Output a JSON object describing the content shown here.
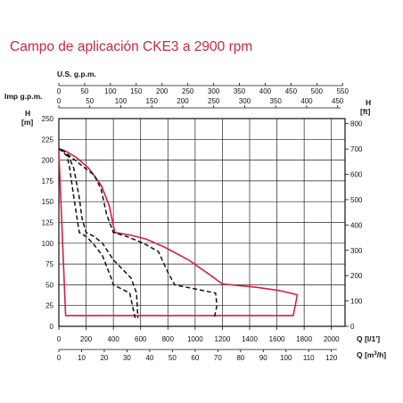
{
  "title": "Campo de aplicación CKE3 a 2900 rpm",
  "chart_data": {
    "type": "line",
    "title": "Campo de aplicación CKE3 a 2900 rpm",
    "grid": true,
    "axes": {
      "left": {
        "label_line1": "H",
        "label_line2": "[m]",
        "ylim": [
          0,
          250
        ],
        "ticks": [
          0,
          25,
          50,
          75,
          100,
          125,
          150,
          175,
          200,
          225,
          250
        ]
      },
      "right": {
        "label_line1": "H",
        "label_line2": "[ft]",
        "ylim": [
          0,
          820
        ],
        "ticks": [
          0,
          100,
          200,
          300,
          400,
          500,
          600,
          700,
          800
        ]
      },
      "bottom_lmin": {
        "label": "Q [l/1']",
        "xlim": [
          0,
          2100
        ],
        "ticks": [
          0,
          200,
          400,
          600,
          800,
          1000,
          1200,
          1400,
          1600,
          1800,
          2000
        ]
      },
      "bottom_m3h": {
        "label_prefix": "Q [m",
        "label_sup": "3",
        "label_suffix": "/h]",
        "ticks": [
          0,
          10,
          20,
          30,
          40,
          50,
          60,
          70,
          80,
          90,
          100,
          110,
          120
        ]
      },
      "top_usgpm": {
        "label": "U.S. g.p.m.",
        "ticks": [
          0,
          50,
          100,
          150,
          200,
          250,
          300,
          350,
          400,
          450,
          500,
          550
        ]
      },
      "top_impgpm": {
        "label": "Imp g.p.m.",
        "ticks": [
          0,
          50,
          100,
          150,
          200,
          250,
          300,
          350,
          400,
          450
        ]
      }
    },
    "series": [
      {
        "style": "solid",
        "color": "#d4213d",
        "points": [
          [
            0,
            214
          ],
          [
            60,
            210
          ],
          [
            130,
            203
          ],
          [
            220,
            190
          ],
          [
            310,
            170
          ],
          [
            370,
            145
          ],
          [
            410,
            113
          ],
          [
            520,
            110
          ],
          [
            640,
            105
          ],
          [
            780,
            95
          ],
          [
            950,
            80
          ],
          [
            1100,
            63
          ],
          [
            1200,
            51
          ],
          [
            1450,
            47
          ],
          [
            1620,
            43
          ],
          [
            1750,
            38
          ],
          [
            1720,
            13
          ],
          [
            1220,
            13
          ],
          [
            400,
            13
          ],
          [
            50,
            13
          ],
          [
            0,
            210
          ]
        ]
      },
      {
        "style": "dashed",
        "color": "#111111",
        "points": [
          [
            20,
            213
          ],
          [
            70,
            205
          ],
          [
            110,
            190
          ],
          [
            150,
            155
          ],
          [
            170,
            130
          ],
          [
            200,
            113
          ],
          [
            260,
            108
          ],
          [
            320,
            100
          ],
          [
            400,
            80
          ],
          [
            530,
            58
          ],
          [
            570,
            40
          ],
          [
            580,
            10
          ]
        ]
      },
      {
        "style": "dashed",
        "color": "#111111",
        "points": [
          [
            20,
            213
          ],
          [
            80,
            205
          ],
          [
            180,
            192
          ],
          [
            260,
            182
          ],
          [
            310,
            165
          ],
          [
            350,
            135
          ],
          [
            400,
            113
          ],
          [
            500,
            108
          ],
          [
            620,
            100
          ],
          [
            730,
            90
          ],
          [
            800,
            65
          ],
          [
            850,
            50
          ],
          [
            1000,
            45
          ],
          [
            1150,
            40
          ],
          [
            1160,
            25
          ],
          [
            1140,
            10
          ]
        ]
      },
      {
        "style": "dashed",
        "color": "#111111",
        "points": [
          [
            0,
            214
          ],
          [
            60,
            205
          ],
          [
            80,
            190
          ],
          [
            110,
            155
          ],
          [
            150,
            113
          ],
          [
            200,
            108
          ],
          [
            250,
            100
          ],
          [
            320,
            85
          ],
          [
            380,
            60
          ],
          [
            400,
            50
          ],
          [
            520,
            40
          ],
          [
            560,
            10
          ]
        ]
      }
    ]
  }
}
